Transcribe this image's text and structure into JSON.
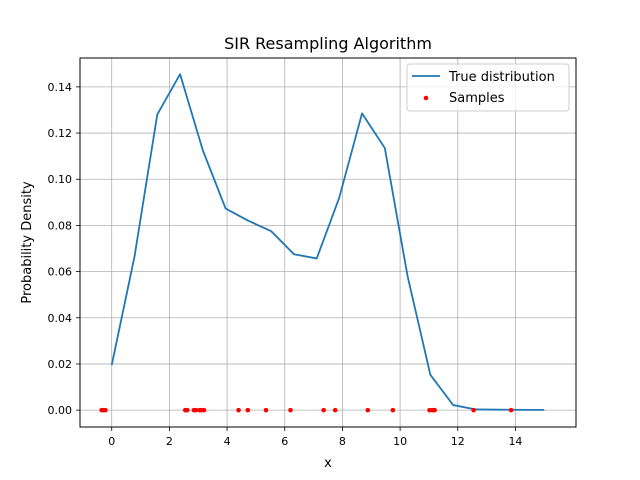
{
  "chart_data": {
    "type": "line",
    "title": "SIR Resampling Algorithm",
    "xlabel": "x",
    "ylabel": "Probability Density",
    "xlim": [
      -1.1,
      16.1
    ],
    "ylim": [
      -0.0073,
      0.1525
    ],
    "xticks": [
      0,
      2,
      4,
      6,
      8,
      10,
      12,
      14
    ],
    "yticks": [
      0.0,
      0.02,
      0.04,
      0.06,
      0.08,
      0.1,
      0.12,
      0.14
    ],
    "ytick_labels": [
      "0.00",
      "0.02",
      "0.04",
      "0.06",
      "0.08",
      "0.10",
      "0.12",
      "0.14"
    ],
    "grid": true,
    "legend_position": "top-right",
    "series": [
      {
        "name": "True distribution",
        "kind": "line",
        "color": "#1f77b4",
        "x": [
          0.0,
          0.79,
          1.58,
          2.37,
          3.16,
          3.95,
          4.74,
          5.53,
          6.32,
          7.11,
          7.89,
          8.68,
          9.47,
          10.26,
          11.05,
          11.84,
          12.63,
          13.42,
          14.21,
          15.0
        ],
        "y": [
          0.0195,
          0.0665,
          0.128,
          0.1455,
          0.1125,
          0.0873,
          0.082,
          0.0775,
          0.0675,
          0.0657,
          0.092,
          0.1285,
          0.1135,
          0.058,
          0.0153,
          0.0022,
          0.0003,
          0.0002,
          0.0001,
          0.0001
        ]
      },
      {
        "name": "Samples",
        "kind": "scatter",
        "color": "#ff0000",
        "x": [
          -0.35,
          -0.28,
          -0.22,
          2.55,
          2.62,
          2.85,
          2.92,
          3.05,
          3.12,
          3.2,
          4.4,
          4.72,
          5.35,
          6.2,
          7.35,
          7.75,
          8.88,
          9.75,
          11.02,
          11.12,
          11.2,
          12.55,
          13.85
        ],
        "y": [
          0,
          0,
          0,
          0,
          0,
          0,
          0,
          0,
          0,
          0,
          0,
          0,
          0,
          0,
          0,
          0,
          0,
          0,
          0,
          0,
          0,
          0,
          0
        ]
      }
    ]
  }
}
